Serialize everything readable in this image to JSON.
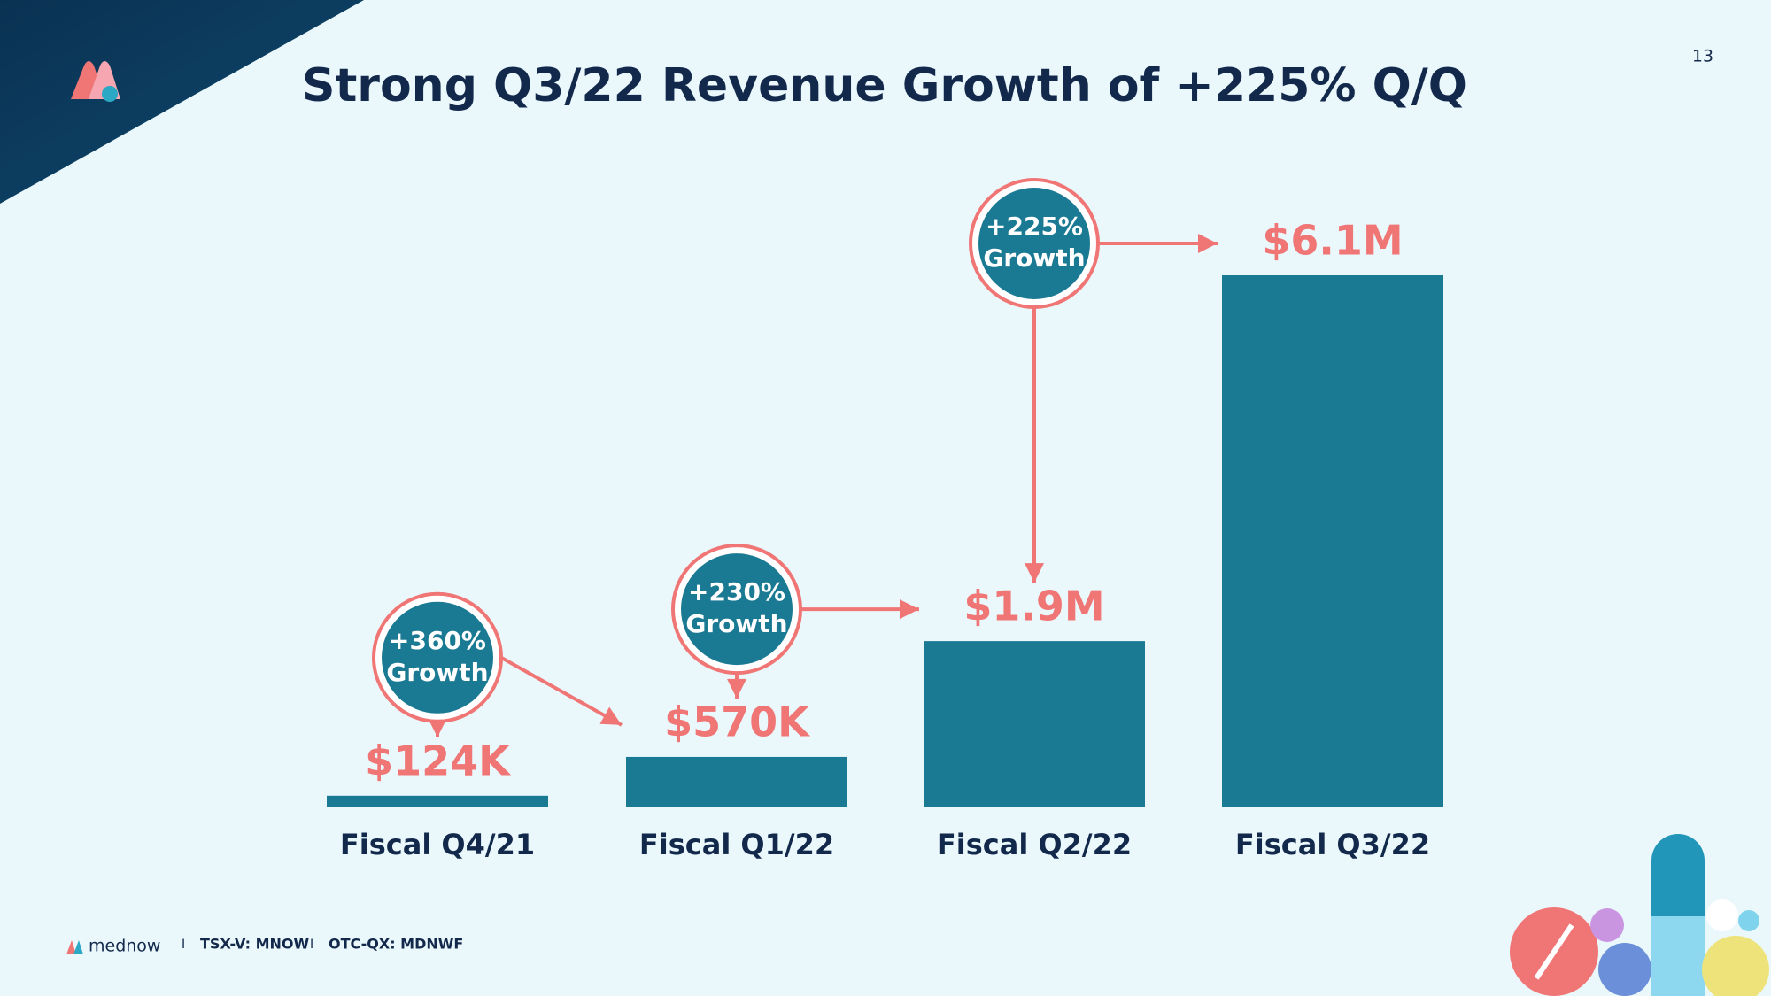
{
  "chart_data": {
    "type": "bar",
    "title": "Strong Q3/22 Revenue Growth of +225% Q/Q",
    "categories": [
      "Fiscal Q4/21",
      "Fiscal Q1/22",
      "Fiscal Q2/22",
      "Fiscal Q3/22"
    ],
    "values": [
      124000,
      570000,
      1900000,
      6100000
    ],
    "value_labels": [
      "$124K",
      "$570K",
      "$1.9M",
      "$6.1M"
    ],
    "color": "#1b7a93",
    "label_color": "#f07575",
    "annotations": [
      {
        "label": "+360%",
        "caption": "Growth"
      },
      {
        "label": "+230%",
        "caption": "Growth"
      },
      {
        "label": "+225%",
        "caption": "Growth"
      }
    ]
  },
  "page": {
    "number": "13",
    "brand": "mednow",
    "separator": "I",
    "tickers": [
      "TSX-V: MNOW",
      "OTC-QX: MDNWF"
    ]
  }
}
